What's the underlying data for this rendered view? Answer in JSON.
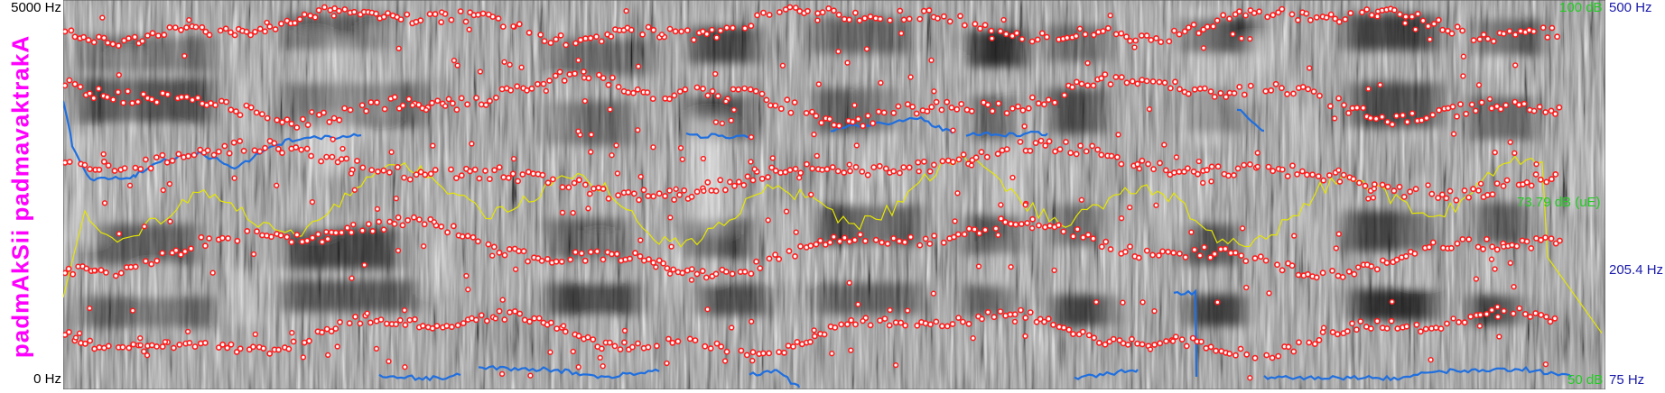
{
  "transcription": "padmAkSii padmavaktrakA",
  "frequency_axis": {
    "max_label": "5000 Hz",
    "min_label": "0 Hz"
  },
  "intensity_axis": {
    "max_label": "100 dB",
    "min_label": "50 dB",
    "current_label": "73.79 dB (uE)"
  },
  "pitch_axis": {
    "max_label": "500 Hz",
    "cursor_label": "205.4 Hz",
    "min_label": "75 Hz"
  },
  "colors": {
    "formant": "#ff2020",
    "pitch": "#1f6fe0",
    "intensity": "#e8e800",
    "label": "#ff00ff",
    "db_text": "#22cc22",
    "hz_text": "#1a1aaa"
  }
}
